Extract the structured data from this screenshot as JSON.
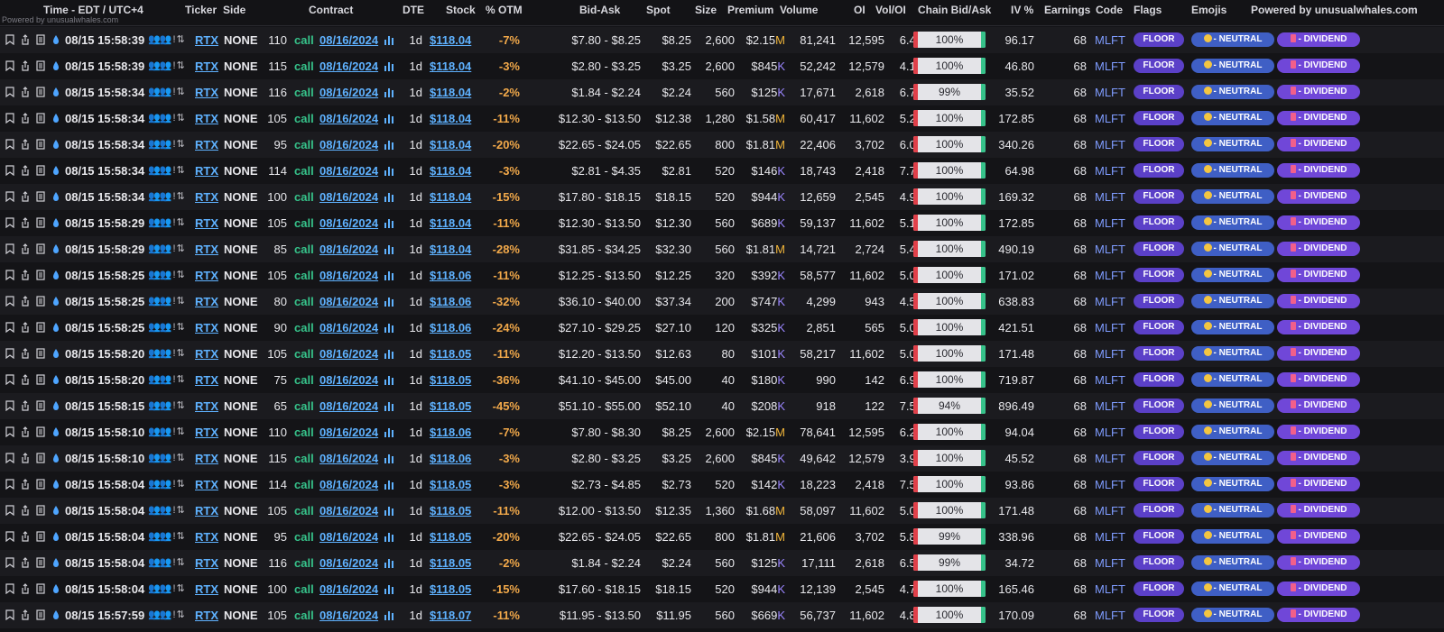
{
  "header": {
    "columns": [
      "Time - EDT / UTC+4",
      "Ticker",
      "Side",
      "Contract",
      "DTE",
      "Stock",
      "% OTM",
      "Bid-Ask",
      "Spot",
      "Size",
      "Premium",
      "Volume",
      "OI",
      "Vol/OI",
      "Chain Bid/Ask",
      "IV %",
      "Earnings",
      "Code",
      "Flags",
      "Emojis",
      "Powered by unusualwhales.com"
    ],
    "powered_small": "Powered by unusualwhales.com"
  },
  "rows": [
    {
      "time": "08/15 15:58:39",
      "extra": "👥👥 ! ⇅",
      "ticker": "RTX",
      "side": "NONE",
      "strike": "110",
      "type": "call",
      "expiry": "08/16/2024",
      "dte": "1d",
      "stock": "$118.04",
      "otm": "-7%",
      "bidask": "$7.80 - $8.25",
      "spot": "$8.25",
      "size": "2,600",
      "premium": "$2.15",
      "unit": "M",
      "volume": "81,241",
      "oi": "12,595",
      "voloi": "6.45",
      "chain": "100%",
      "iv": "96.17",
      "earnings": "68",
      "code": "MLFT",
      "flag": "FLOOR",
      "emoji": "- NEUTRAL",
      "tag": "- DIVIDEND"
    },
    {
      "time": "08/15 15:58:39",
      "extra": "👥👥 ! ⇅",
      "ticker": "RTX",
      "side": "NONE",
      "strike": "115",
      "type": "call",
      "expiry": "08/16/2024",
      "dte": "1d",
      "stock": "$118.04",
      "otm": "-3%",
      "bidask": "$2.80 - $3.25",
      "spot": "$3.25",
      "size": "2,600",
      "premium": "$845",
      "unit": "K",
      "volume": "52,242",
      "oi": "12,579",
      "voloi": "4.15",
      "chain": "100%",
      "iv": "46.80",
      "earnings": "68",
      "code": "MLFT",
      "flag": "FLOOR",
      "emoji": "- NEUTRAL",
      "tag": "- DIVIDEND"
    },
    {
      "time": "08/15 15:58:34",
      "extra": "👥👥 ! ⇅",
      "ticker": "RTX",
      "side": "NONE",
      "strike": "116",
      "type": "call",
      "expiry": "08/16/2024",
      "dte": "1d",
      "stock": "$118.04",
      "otm": "-2%",
      "bidask": "$1.84 - $2.24",
      "spot": "$2.24",
      "size": "560",
      "premium": "$125",
      "unit": "K",
      "volume": "17,671",
      "oi": "2,618",
      "voloi": "6.75",
      "chain": "99%",
      "iv": "35.52",
      "earnings": "68",
      "code": "MLFT",
      "flag": "FLOOR",
      "emoji": "- NEUTRAL",
      "tag": "- DIVIDEND"
    },
    {
      "time": "08/15 15:58:34",
      "extra": "👥👥 ! ⇅",
      "ticker": "RTX",
      "side": "NONE",
      "strike": "105",
      "type": "call",
      "expiry": "08/16/2024",
      "dte": "1d",
      "stock": "$118.04",
      "otm": "-11%",
      "bidask": "$12.30 - $13.50",
      "spot": "$12.38",
      "size": "1,280",
      "premium": "$1.58",
      "unit": "M",
      "volume": "60,417",
      "oi": "11,602",
      "voloi": "5.21",
      "chain": "100%",
      "iv": "172.85",
      "earnings": "68",
      "code": "MLFT",
      "flag": "FLOOR",
      "emoji": "- NEUTRAL",
      "tag": "- DIVIDEND"
    },
    {
      "time": "08/15 15:58:34",
      "extra": "👥👥 ! ⇅",
      "ticker": "RTX",
      "side": "NONE",
      "strike": "95",
      "type": "call",
      "expiry": "08/16/2024",
      "dte": "1d",
      "stock": "$118.04",
      "otm": "-20%",
      "bidask": "$22.65 - $24.05",
      "spot": "$22.65",
      "size": "800",
      "premium": "$1.81",
      "unit": "M",
      "volume": "22,406",
      "oi": "3,702",
      "voloi": "6.05",
      "chain": "100%",
      "iv": "340.26",
      "earnings": "68",
      "code": "MLFT",
      "flag": "FLOOR",
      "emoji": "- NEUTRAL",
      "tag": "- DIVIDEND"
    },
    {
      "time": "08/15 15:58:34",
      "extra": "👥👥 ! ⇅",
      "ticker": "RTX",
      "side": "NONE",
      "strike": "114",
      "type": "call",
      "expiry": "08/16/2024",
      "dte": "1d",
      "stock": "$118.04",
      "otm": "-3%",
      "bidask": "$2.81 - $4.35",
      "spot": "$2.81",
      "size": "520",
      "premium": "$146",
      "unit": "K",
      "volume": "18,743",
      "oi": "2,418",
      "voloi": "7.75",
      "chain": "100%",
      "iv": "64.98",
      "earnings": "68",
      "code": "MLFT",
      "flag": "FLOOR",
      "emoji": "- NEUTRAL",
      "tag": "- DIVIDEND"
    },
    {
      "time": "08/15 15:58:34",
      "extra": "👥👥 ! ⇅",
      "ticker": "RTX",
      "side": "NONE",
      "strike": "100",
      "type": "call",
      "expiry": "08/16/2024",
      "dte": "1d",
      "stock": "$118.04",
      "otm": "-15%",
      "bidask": "$17.80 - $18.15",
      "spot": "$18.15",
      "size": "520",
      "premium": "$944",
      "unit": "K",
      "volume": "12,659",
      "oi": "2,545",
      "voloi": "4.97",
      "chain": "100%",
      "iv": "169.32",
      "earnings": "68",
      "code": "MLFT",
      "flag": "FLOOR",
      "emoji": "- NEUTRAL",
      "tag": "- DIVIDEND"
    },
    {
      "time": "08/15 15:58:29",
      "extra": "👥👥 ! ⇅",
      "ticker": "RTX",
      "side": "NONE",
      "strike": "105",
      "type": "call",
      "expiry": "08/16/2024",
      "dte": "1d",
      "stock": "$118.04",
      "otm": "-11%",
      "bidask": "$12.30 - $13.50",
      "spot": "$12.30",
      "size": "560",
      "premium": "$689",
      "unit": "K",
      "volume": "59,137",
      "oi": "11,602",
      "voloi": "5.10",
      "chain": "100%",
      "iv": "172.85",
      "earnings": "68",
      "code": "MLFT",
      "flag": "FLOOR",
      "emoji": "- NEUTRAL",
      "tag": "- DIVIDEND"
    },
    {
      "time": "08/15 15:58:29",
      "extra": "👥👥 ! ⇅",
      "ticker": "RTX",
      "side": "NONE",
      "strike": "85",
      "type": "call",
      "expiry": "08/16/2024",
      "dte": "1d",
      "stock": "$118.04",
      "otm": "-28%",
      "bidask": "$31.85 - $34.25",
      "spot": "$32.30",
      "size": "560",
      "premium": "$1.81",
      "unit": "M",
      "volume": "14,721",
      "oi": "2,724",
      "voloi": "5.40",
      "chain": "100%",
      "iv": "490.19",
      "earnings": "68",
      "code": "MLFT",
      "flag": "FLOOR",
      "emoji": "- NEUTRAL",
      "tag": "- DIVIDEND"
    },
    {
      "time": "08/15 15:58:25",
      "extra": "👥👥 ! ⇅",
      "ticker": "RTX",
      "side": "NONE",
      "strike": "105",
      "type": "call",
      "expiry": "08/16/2024",
      "dte": "1d",
      "stock": "$118.06",
      "otm": "-11%",
      "bidask": "$12.25 - $13.50",
      "spot": "$12.25",
      "size": "320",
      "premium": "$392",
      "unit": "K",
      "volume": "58,577",
      "oi": "11,602",
      "voloi": "5.05",
      "chain": "100%",
      "iv": "171.02",
      "earnings": "68",
      "code": "MLFT",
      "flag": "FLOOR",
      "emoji": "- NEUTRAL",
      "tag": "- DIVIDEND"
    },
    {
      "time": "08/15 15:58:25",
      "extra": "👥👥 ! ⇅",
      "ticker": "RTX",
      "side": "NONE",
      "strike": "80",
      "type": "call",
      "expiry": "08/16/2024",
      "dte": "1d",
      "stock": "$118.06",
      "otm": "-32%",
      "bidask": "$36.10 - $40.00",
      "spot": "$37.34",
      "size": "200",
      "premium": "$747",
      "unit": "K",
      "volume": "4,299",
      "oi": "943",
      "voloi": "4.56",
      "chain": "100%",
      "iv": "638.83",
      "earnings": "68",
      "code": "MLFT",
      "flag": "FLOOR",
      "emoji": "- NEUTRAL",
      "tag": "- DIVIDEND"
    },
    {
      "time": "08/15 15:58:25",
      "extra": "👥👥 ! ⇅",
      "ticker": "RTX",
      "side": "NONE",
      "strike": "90",
      "type": "call",
      "expiry": "08/16/2024",
      "dte": "1d",
      "stock": "$118.06",
      "otm": "-24%",
      "bidask": "$27.10 - $29.25",
      "spot": "$27.10",
      "size": "120",
      "premium": "$325",
      "unit": "K",
      "volume": "2,851",
      "oi": "565",
      "voloi": "5.05",
      "chain": "100%",
      "iv": "421.51",
      "earnings": "68",
      "code": "MLFT",
      "flag": "FLOOR",
      "emoji": "- NEUTRAL",
      "tag": "- DIVIDEND"
    },
    {
      "time": "08/15 15:58:20",
      "extra": "👥👥 ! ⇅",
      "ticker": "RTX",
      "side": "NONE",
      "strike": "105",
      "type": "call",
      "expiry": "08/16/2024",
      "dte": "1d",
      "stock": "$118.05",
      "otm": "-11%",
      "bidask": "$12.20 - $13.50",
      "spot": "$12.63",
      "size": "80",
      "premium": "$101",
      "unit": "K",
      "volume": "58,217",
      "oi": "11,602",
      "voloi": "5.02",
      "chain": "100%",
      "iv": "171.48",
      "earnings": "68",
      "code": "MLFT",
      "flag": "FLOOR",
      "emoji": "- NEUTRAL",
      "tag": "- DIVIDEND"
    },
    {
      "time": "08/15 15:58:20",
      "extra": "👥👥 ! ⇅",
      "ticker": "RTX",
      "side": "NONE",
      "strike": "75",
      "type": "call",
      "expiry": "08/16/2024",
      "dte": "1d",
      "stock": "$118.05",
      "otm": "-36%",
      "bidask": "$41.10 - $45.00",
      "spot": "$45.00",
      "size": "40",
      "premium": "$180",
      "unit": "K",
      "volume": "990",
      "oi": "142",
      "voloi": "6.97",
      "chain": "100%",
      "iv": "719.87",
      "earnings": "68",
      "code": "MLFT",
      "flag": "FLOOR",
      "emoji": "- NEUTRAL",
      "tag": "- DIVIDEND"
    },
    {
      "time": "08/15 15:58:15",
      "extra": "👥👥 ! ⇅",
      "ticker": "RTX",
      "side": "NONE",
      "strike": "65",
      "type": "call",
      "expiry": "08/16/2024",
      "dte": "1d",
      "stock": "$118.05",
      "otm": "-45%",
      "bidask": "$51.10 - $55.00",
      "spot": "$52.10",
      "size": "40",
      "premium": "$208",
      "unit": "K",
      "volume": "918",
      "oi": "122",
      "voloi": "7.52",
      "chain": "94%",
      "iv": "896.49",
      "earnings": "68",
      "code": "MLFT",
      "flag": "FLOOR",
      "emoji": "- NEUTRAL",
      "tag": "- DIVIDEND"
    },
    {
      "time": "08/15 15:58:10",
      "extra": "👥👥 ! ⇅",
      "ticker": "RTX",
      "side": "NONE",
      "strike": "110",
      "type": "call",
      "expiry": "08/16/2024",
      "dte": "1d",
      "stock": "$118.06",
      "otm": "-7%",
      "bidask": "$7.80 - $8.30",
      "spot": "$8.25",
      "size": "2,600",
      "premium": "$2.15",
      "unit": "M",
      "volume": "78,641",
      "oi": "12,595",
      "voloi": "6.24",
      "chain": "100%",
      "iv": "94.04",
      "earnings": "68",
      "code": "MLFT",
      "flag": "FLOOR",
      "emoji": "- NEUTRAL",
      "tag": "- DIVIDEND"
    },
    {
      "time": "08/15 15:58:10",
      "extra": "👥👥 ! ⇅",
      "ticker": "RTX",
      "side": "NONE",
      "strike": "115",
      "type": "call",
      "expiry": "08/16/2024",
      "dte": "1d",
      "stock": "$118.06",
      "otm": "-3%",
      "bidask": "$2.80 - $3.25",
      "spot": "$3.25",
      "size": "2,600",
      "premium": "$845",
      "unit": "K",
      "volume": "49,642",
      "oi": "12,579",
      "voloi": "3.95",
      "chain": "100%",
      "iv": "45.52",
      "earnings": "68",
      "code": "MLFT",
      "flag": "FLOOR",
      "emoji": "- NEUTRAL",
      "tag": "- DIVIDEND"
    },
    {
      "time": "08/15 15:58:04",
      "extra": "👥👥 ! ⇅",
      "ticker": "RTX",
      "side": "NONE",
      "strike": "114",
      "type": "call",
      "expiry": "08/16/2024",
      "dte": "1d",
      "stock": "$118.05",
      "otm": "-3%",
      "bidask": "$2.73 - $4.85",
      "spot": "$2.73",
      "size": "520",
      "premium": "$142",
      "unit": "K",
      "volume": "18,223",
      "oi": "2,418",
      "voloi": "7.54",
      "chain": "100%",
      "iv": "93.86",
      "earnings": "68",
      "code": "MLFT",
      "flag": "FLOOR",
      "emoji": "- NEUTRAL",
      "tag": "- DIVIDEND"
    },
    {
      "time": "08/15 15:58:04",
      "extra": "👥👥 ! ⇅",
      "ticker": "RTX",
      "side": "NONE",
      "strike": "105",
      "type": "call",
      "expiry": "08/16/2024",
      "dte": "1d",
      "stock": "$118.05",
      "otm": "-11%",
      "bidask": "$12.00 - $13.50",
      "spot": "$12.35",
      "size": "1,360",
      "premium": "$1.68",
      "unit": "M",
      "volume": "58,097",
      "oi": "11,602",
      "voloi": "5.01",
      "chain": "100%",
      "iv": "171.48",
      "earnings": "68",
      "code": "MLFT",
      "flag": "FLOOR",
      "emoji": "- NEUTRAL",
      "tag": "- DIVIDEND"
    },
    {
      "time": "08/15 15:58:04",
      "extra": "👥👥 ! ⇅",
      "ticker": "RTX",
      "side": "NONE",
      "strike": "95",
      "type": "call",
      "expiry": "08/16/2024",
      "dte": "1d",
      "stock": "$118.05",
      "otm": "-20%",
      "bidask": "$22.65 - $24.05",
      "spot": "$22.65",
      "size": "800",
      "premium": "$1.81",
      "unit": "M",
      "volume": "21,606",
      "oi": "3,702",
      "voloi": "5.84",
      "chain": "99%",
      "iv": "338.96",
      "earnings": "68",
      "code": "MLFT",
      "flag": "FLOOR",
      "emoji": "- NEUTRAL",
      "tag": "- DIVIDEND"
    },
    {
      "time": "08/15 15:58:04",
      "extra": "👥👥 ! ⇅",
      "ticker": "RTX",
      "side": "NONE",
      "strike": "116",
      "type": "call",
      "expiry": "08/16/2024",
      "dte": "1d",
      "stock": "$118.05",
      "otm": "-2%",
      "bidask": "$1.84 - $2.24",
      "spot": "$2.24",
      "size": "560",
      "premium": "$125",
      "unit": "K",
      "volume": "17,111",
      "oi": "2,618",
      "voloi": "6.54",
      "chain": "99%",
      "iv": "34.72",
      "earnings": "68",
      "code": "MLFT",
      "flag": "FLOOR",
      "emoji": "- NEUTRAL",
      "tag": "- DIVIDEND"
    },
    {
      "time": "08/15 15:58:04",
      "extra": "👥👥 ! ⇅",
      "ticker": "RTX",
      "side": "NONE",
      "strike": "100",
      "type": "call",
      "expiry": "08/16/2024",
      "dte": "1d",
      "stock": "$118.05",
      "otm": "-15%",
      "bidask": "$17.60 - $18.15",
      "spot": "$18.15",
      "size": "520",
      "premium": "$944",
      "unit": "K",
      "volume": "12,139",
      "oi": "2,545",
      "voloi": "4.77",
      "chain": "100%",
      "iv": "165.46",
      "earnings": "68",
      "code": "MLFT",
      "flag": "FLOOR",
      "emoji": "- NEUTRAL",
      "tag": "- DIVIDEND"
    },
    {
      "time": "08/15 15:57:59",
      "extra": "👥👥 ! ⇅",
      "ticker": "RTX",
      "side": "NONE",
      "strike": "105",
      "type": "call",
      "expiry": "08/16/2024",
      "dte": "1d",
      "stock": "$118.07",
      "otm": "-11%",
      "bidask": "$11.95 - $13.50",
      "spot": "$11.95",
      "size": "560",
      "premium": "$669",
      "unit": "K",
      "volume": "56,737",
      "oi": "11,602",
      "voloi": "4.89",
      "chain": "100%",
      "iv": "170.09",
      "earnings": "68",
      "code": "MLFT",
      "flag": "FLOOR",
      "emoji": "- NEUTRAL",
      "tag": "- DIVIDEND"
    }
  ]
}
